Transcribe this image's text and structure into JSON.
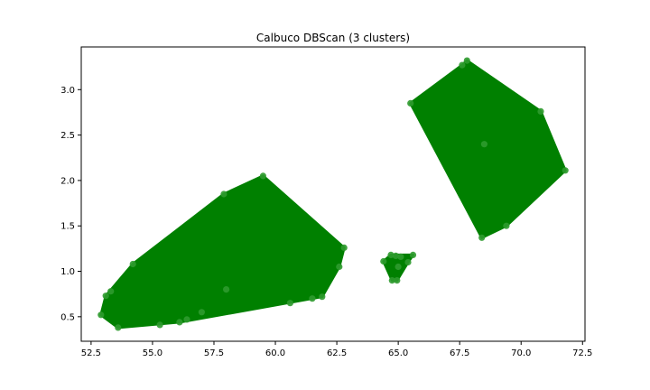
{
  "chart_data": {
    "type": "scatter",
    "title": "Calbuco DBScan (3 clusters)",
    "xlabel": "",
    "ylabel": "",
    "xlim": [
      52.1,
      72.6
    ],
    "ylim": [
      0.23,
      3.47
    ],
    "xticks": [
      52.5,
      55.0,
      57.5,
      60.0,
      62.5,
      65.0,
      67.5,
      70.0,
      72.5
    ],
    "xtick_labels": [
      "52.5",
      "55.0",
      "57.5",
      "60.0",
      "62.5",
      "65.0",
      "67.5",
      "70.0",
      "72.5"
    ],
    "yticks": [
      0.5,
      1.0,
      1.5,
      2.0,
      2.5,
      3.0
    ],
    "ytick_labels": [
      "0.5",
      "1.0",
      "1.5",
      "2.0",
      "2.5",
      "3.0"
    ],
    "grid": false,
    "fill_color": "#008000",
    "point_color": "#2e9a2e",
    "clusters": [
      {
        "points": [
          {
            "x": 52.9,
            "y": 0.52
          },
          {
            "x": 53.1,
            "y": 0.73
          },
          {
            "x": 53.3,
            "y": 0.78
          },
          {
            "x": 54.2,
            "y": 1.08
          },
          {
            "x": 57.9,
            "y": 1.85
          },
          {
            "x": 59.5,
            "y": 2.05
          },
          {
            "x": 62.8,
            "y": 1.26
          },
          {
            "x": 62.6,
            "y": 1.05
          },
          {
            "x": 61.9,
            "y": 0.72
          },
          {
            "x": 61.5,
            "y": 0.7
          },
          {
            "x": 60.6,
            "y": 0.65
          },
          {
            "x": 56.1,
            "y": 0.44
          },
          {
            "x": 56.4,
            "y": 0.47
          },
          {
            "x": 53.6,
            "y": 0.38
          },
          {
            "x": 55.3,
            "y": 0.41
          },
          {
            "x": 57.0,
            "y": 0.55
          },
          {
            "x": 58.0,
            "y": 0.8
          }
        ],
        "hull": [
          {
            "x": 52.9,
            "y": 0.52
          },
          {
            "x": 53.1,
            "y": 0.73
          },
          {
            "x": 54.2,
            "y": 1.08
          },
          {
            "x": 57.9,
            "y": 1.85
          },
          {
            "x": 59.5,
            "y": 2.05
          },
          {
            "x": 62.8,
            "y": 1.26
          },
          {
            "x": 62.6,
            "y": 1.05
          },
          {
            "x": 61.9,
            "y": 0.72
          },
          {
            "x": 56.1,
            "y": 0.44
          },
          {
            "x": 53.6,
            "y": 0.38
          }
        ]
      },
      {
        "points": [
          {
            "x": 64.4,
            "y": 1.11
          },
          {
            "x": 64.7,
            "y": 1.18
          },
          {
            "x": 64.9,
            "y": 1.17
          },
          {
            "x": 65.1,
            "y": 1.16
          },
          {
            "x": 65.6,
            "y": 1.18
          },
          {
            "x": 65.4,
            "y": 1.1
          },
          {
            "x": 64.75,
            "y": 0.9
          },
          {
            "x": 64.95,
            "y": 0.9
          },
          {
            "x": 65.0,
            "y": 1.05
          }
        ],
        "hull": [
          {
            "x": 64.4,
            "y": 1.11
          },
          {
            "x": 64.7,
            "y": 1.18
          },
          {
            "x": 65.6,
            "y": 1.18
          },
          {
            "x": 65.4,
            "y": 1.1
          },
          {
            "x": 64.95,
            "y": 0.9
          },
          {
            "x": 64.75,
            "y": 0.9
          }
        ]
      },
      {
        "points": [
          {
            "x": 65.5,
            "y": 2.85
          },
          {
            "x": 67.6,
            "y": 3.27
          },
          {
            "x": 67.8,
            "y": 3.32
          },
          {
            "x": 70.8,
            "y": 2.76
          },
          {
            "x": 71.8,
            "y": 2.11
          },
          {
            "x": 69.4,
            "y": 1.5
          },
          {
            "x": 68.4,
            "y": 1.37
          },
          {
            "x": 68.5,
            "y": 2.4
          }
        ],
        "hull": [
          {
            "x": 65.5,
            "y": 2.85
          },
          {
            "x": 67.6,
            "y": 3.27
          },
          {
            "x": 67.8,
            "y": 3.32
          },
          {
            "x": 70.8,
            "y": 2.76
          },
          {
            "x": 71.8,
            "y": 2.11
          },
          {
            "x": 69.4,
            "y": 1.5
          },
          {
            "x": 68.4,
            "y": 1.37
          }
        ]
      }
    ]
  }
}
